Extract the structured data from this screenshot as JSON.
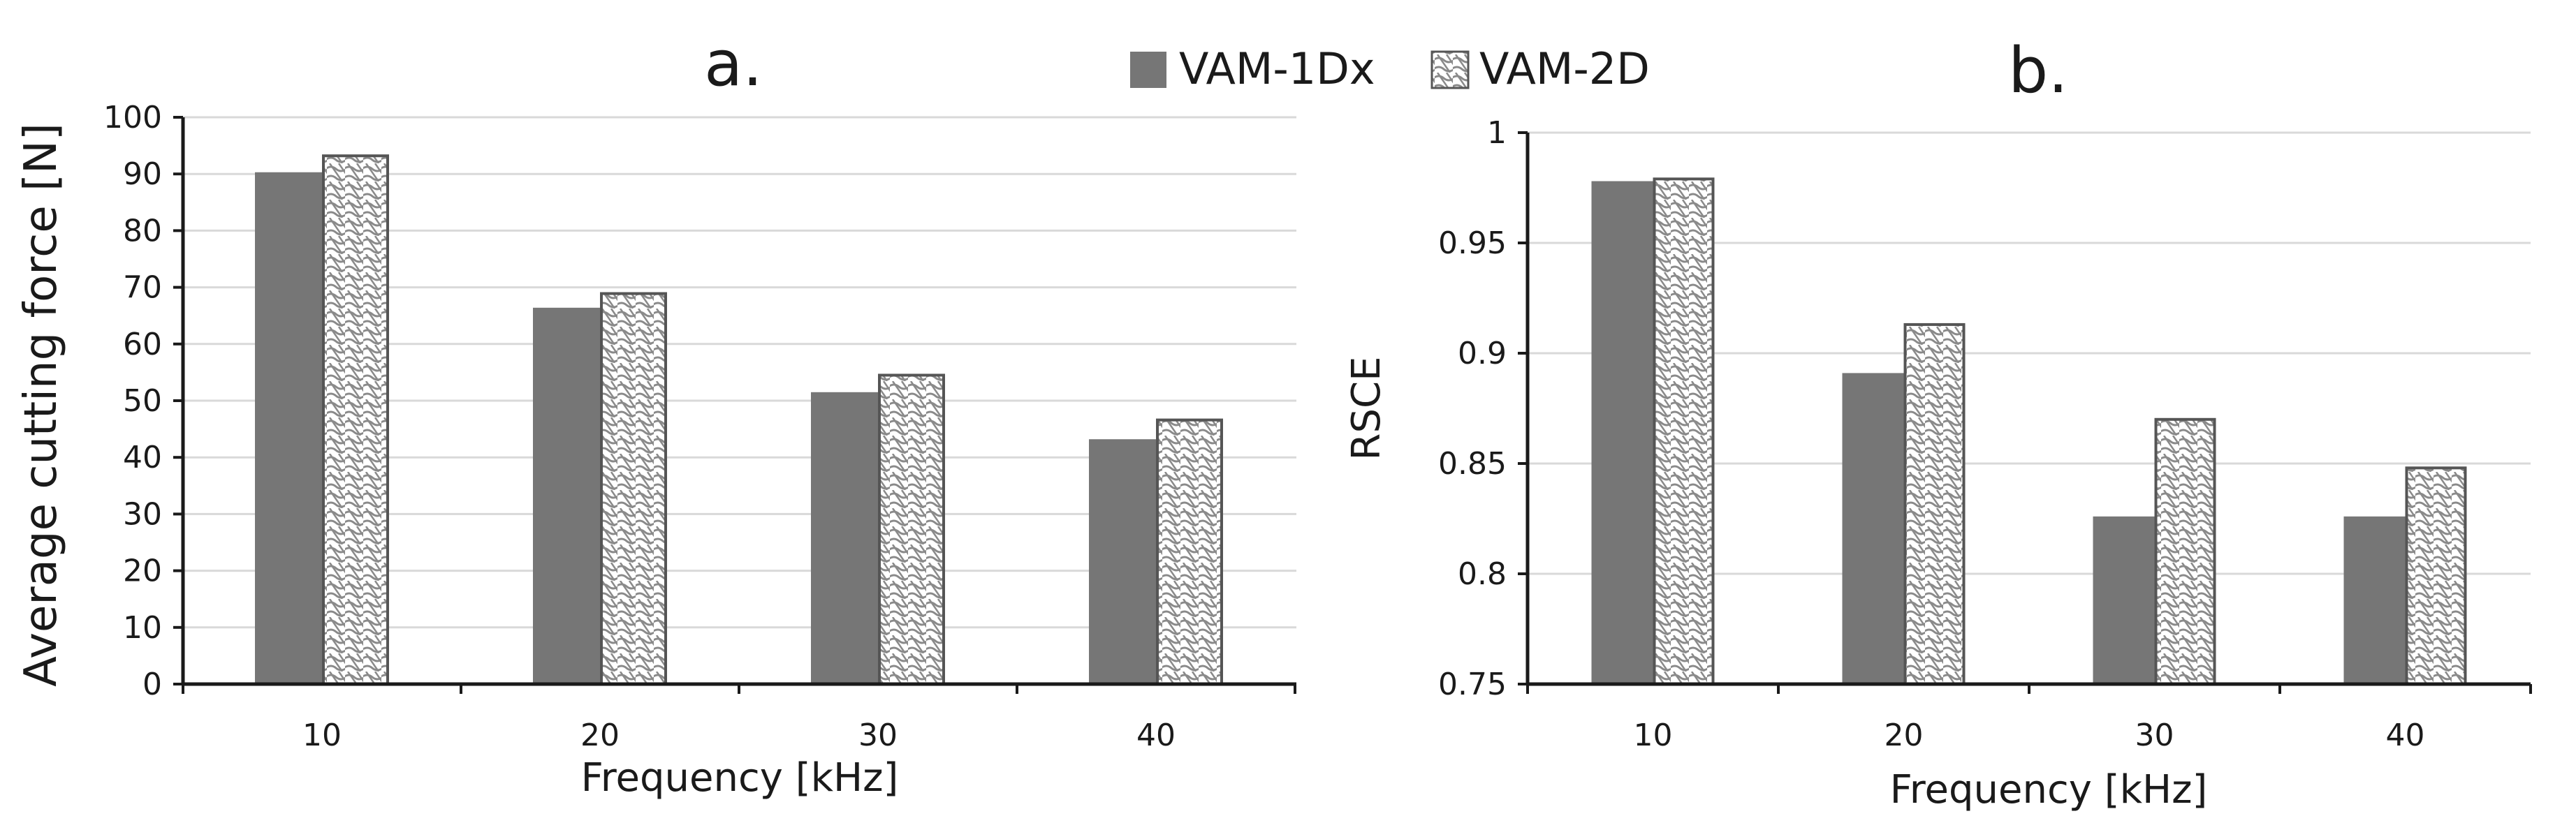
{
  "legend": [
    "VAM-1Dx",
    "VAM-2D"
  ],
  "colors": {
    "solid": "#767676",
    "hatch_stroke": "#8a8a8a",
    "axis": "#1a1a1a",
    "grid": "#d9d9d9"
  },
  "chart_data": [
    {
      "type": "bar",
      "title": "a.",
      "xlabel": "Frequency [kHz]",
      "ylabel": "Average cutting force [N]",
      "categories": [
        "10",
        "20",
        "30",
        "40"
      ],
      "ylim": [
        0,
        100
      ],
      "yticks": [
        "0",
        "10",
        "20",
        "30",
        "40",
        "50",
        "60",
        "70",
        "80",
        "90",
        "100"
      ],
      "grid": true,
      "series": [
        {
          "name": "VAM-1Dx",
          "values": [
            90.3,
            66.4,
            51.5,
            43.2
          ]
        },
        {
          "name": "VAM-2D",
          "values": [
            93.2,
            68.9,
            54.5,
            46.6
          ]
        }
      ]
    },
    {
      "type": "bar",
      "title": "b.",
      "xlabel": "Frequency [kHz]",
      "ylabel": "RSCE",
      "categories": [
        "10",
        "20",
        "30",
        "40"
      ],
      "ylim": [
        0.75,
        1.0
      ],
      "yticks": [
        "0.75",
        "0.8",
        "0.85",
        "0.9",
        "0.95",
        "1"
      ],
      "grid": true,
      "series": [
        {
          "name": "VAM-1Dx",
          "values": [
            0.978,
            0.891,
            0.826,
            0.826
          ]
        },
        {
          "name": "VAM-2D",
          "values": [
            0.979,
            0.913,
            0.87,
            0.848
          ]
        }
      ]
    }
  ]
}
